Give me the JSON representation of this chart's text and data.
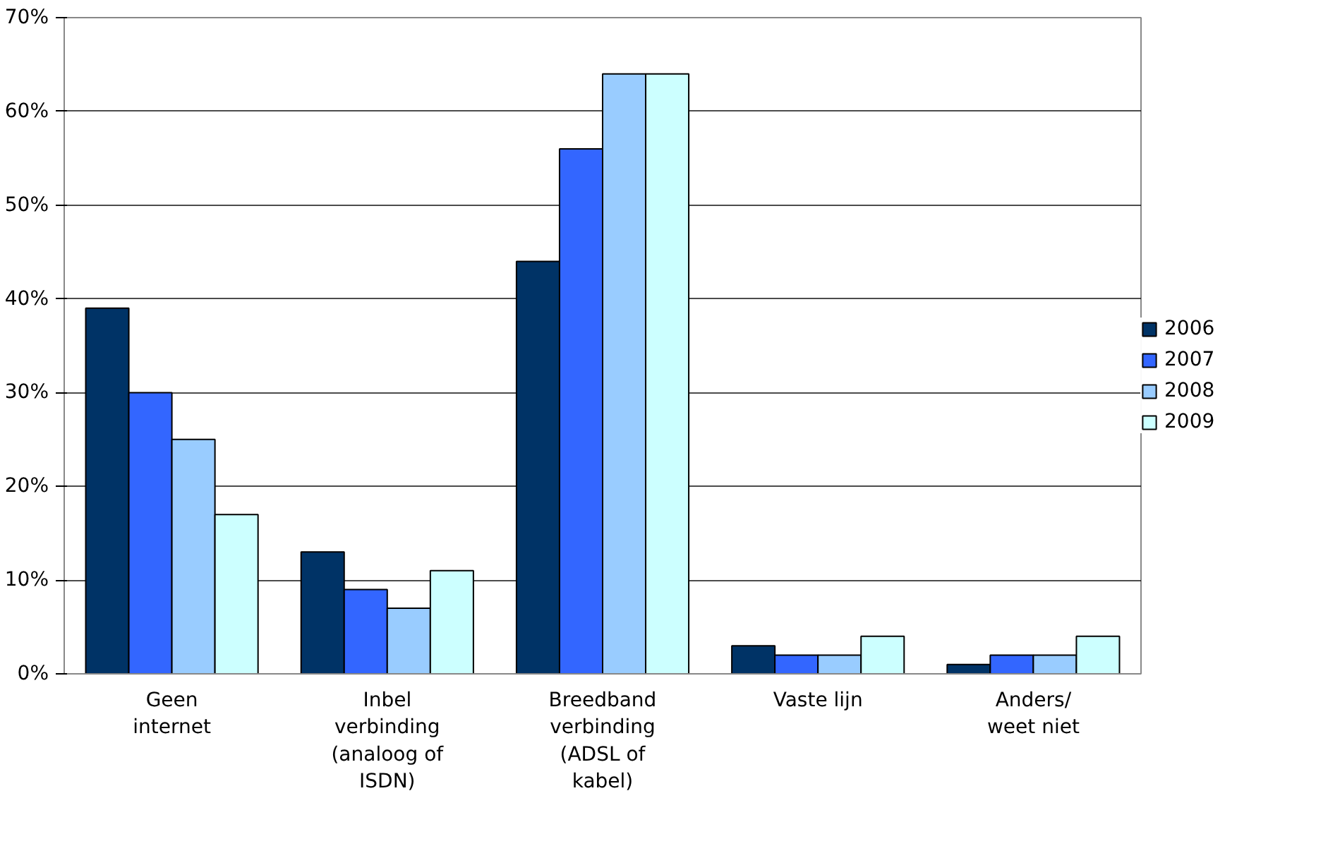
{
  "chart_data": {
    "type": "bar",
    "categories": [
      "Geen internet",
      "Inbel verbinding (analoog of ISDN)",
      "Breedband verbinding (ADSL of kabel)",
      "Vaste lijn",
      "Anders/ weet niet"
    ],
    "series": [
      {
        "name": "2006",
        "color": "#003366",
        "values": [
          39,
          13,
          44,
          3,
          1
        ]
      },
      {
        "name": "2007",
        "color": "#3366ff",
        "values": [
          30,
          9,
          56,
          2,
          2
        ]
      },
      {
        "name": "2008",
        "color": "#99ccff",
        "values": [
          25,
          7,
          64,
          2,
          2
        ]
      },
      {
        "name": "2009",
        "color": "#ccffff",
        "values": [
          17,
          11,
          64,
          4,
          4
        ]
      }
    ],
    "ylim": [
      0,
      70
    ],
    "yticks": [
      {
        "value": 0,
        "label": "0%"
      },
      {
        "value": 10,
        "label": "10%"
      },
      {
        "value": 20,
        "label": "20%"
      },
      {
        "value": 30,
        "label": "30%"
      },
      {
        "value": 40,
        "label": "40%"
      },
      {
        "value": 50,
        "label": "50%"
      },
      {
        "value": 60,
        "label": "60%"
      },
      {
        "value": 70,
        "label": "70%"
      }
    ],
    "grid": "y",
    "legend": "right"
  }
}
